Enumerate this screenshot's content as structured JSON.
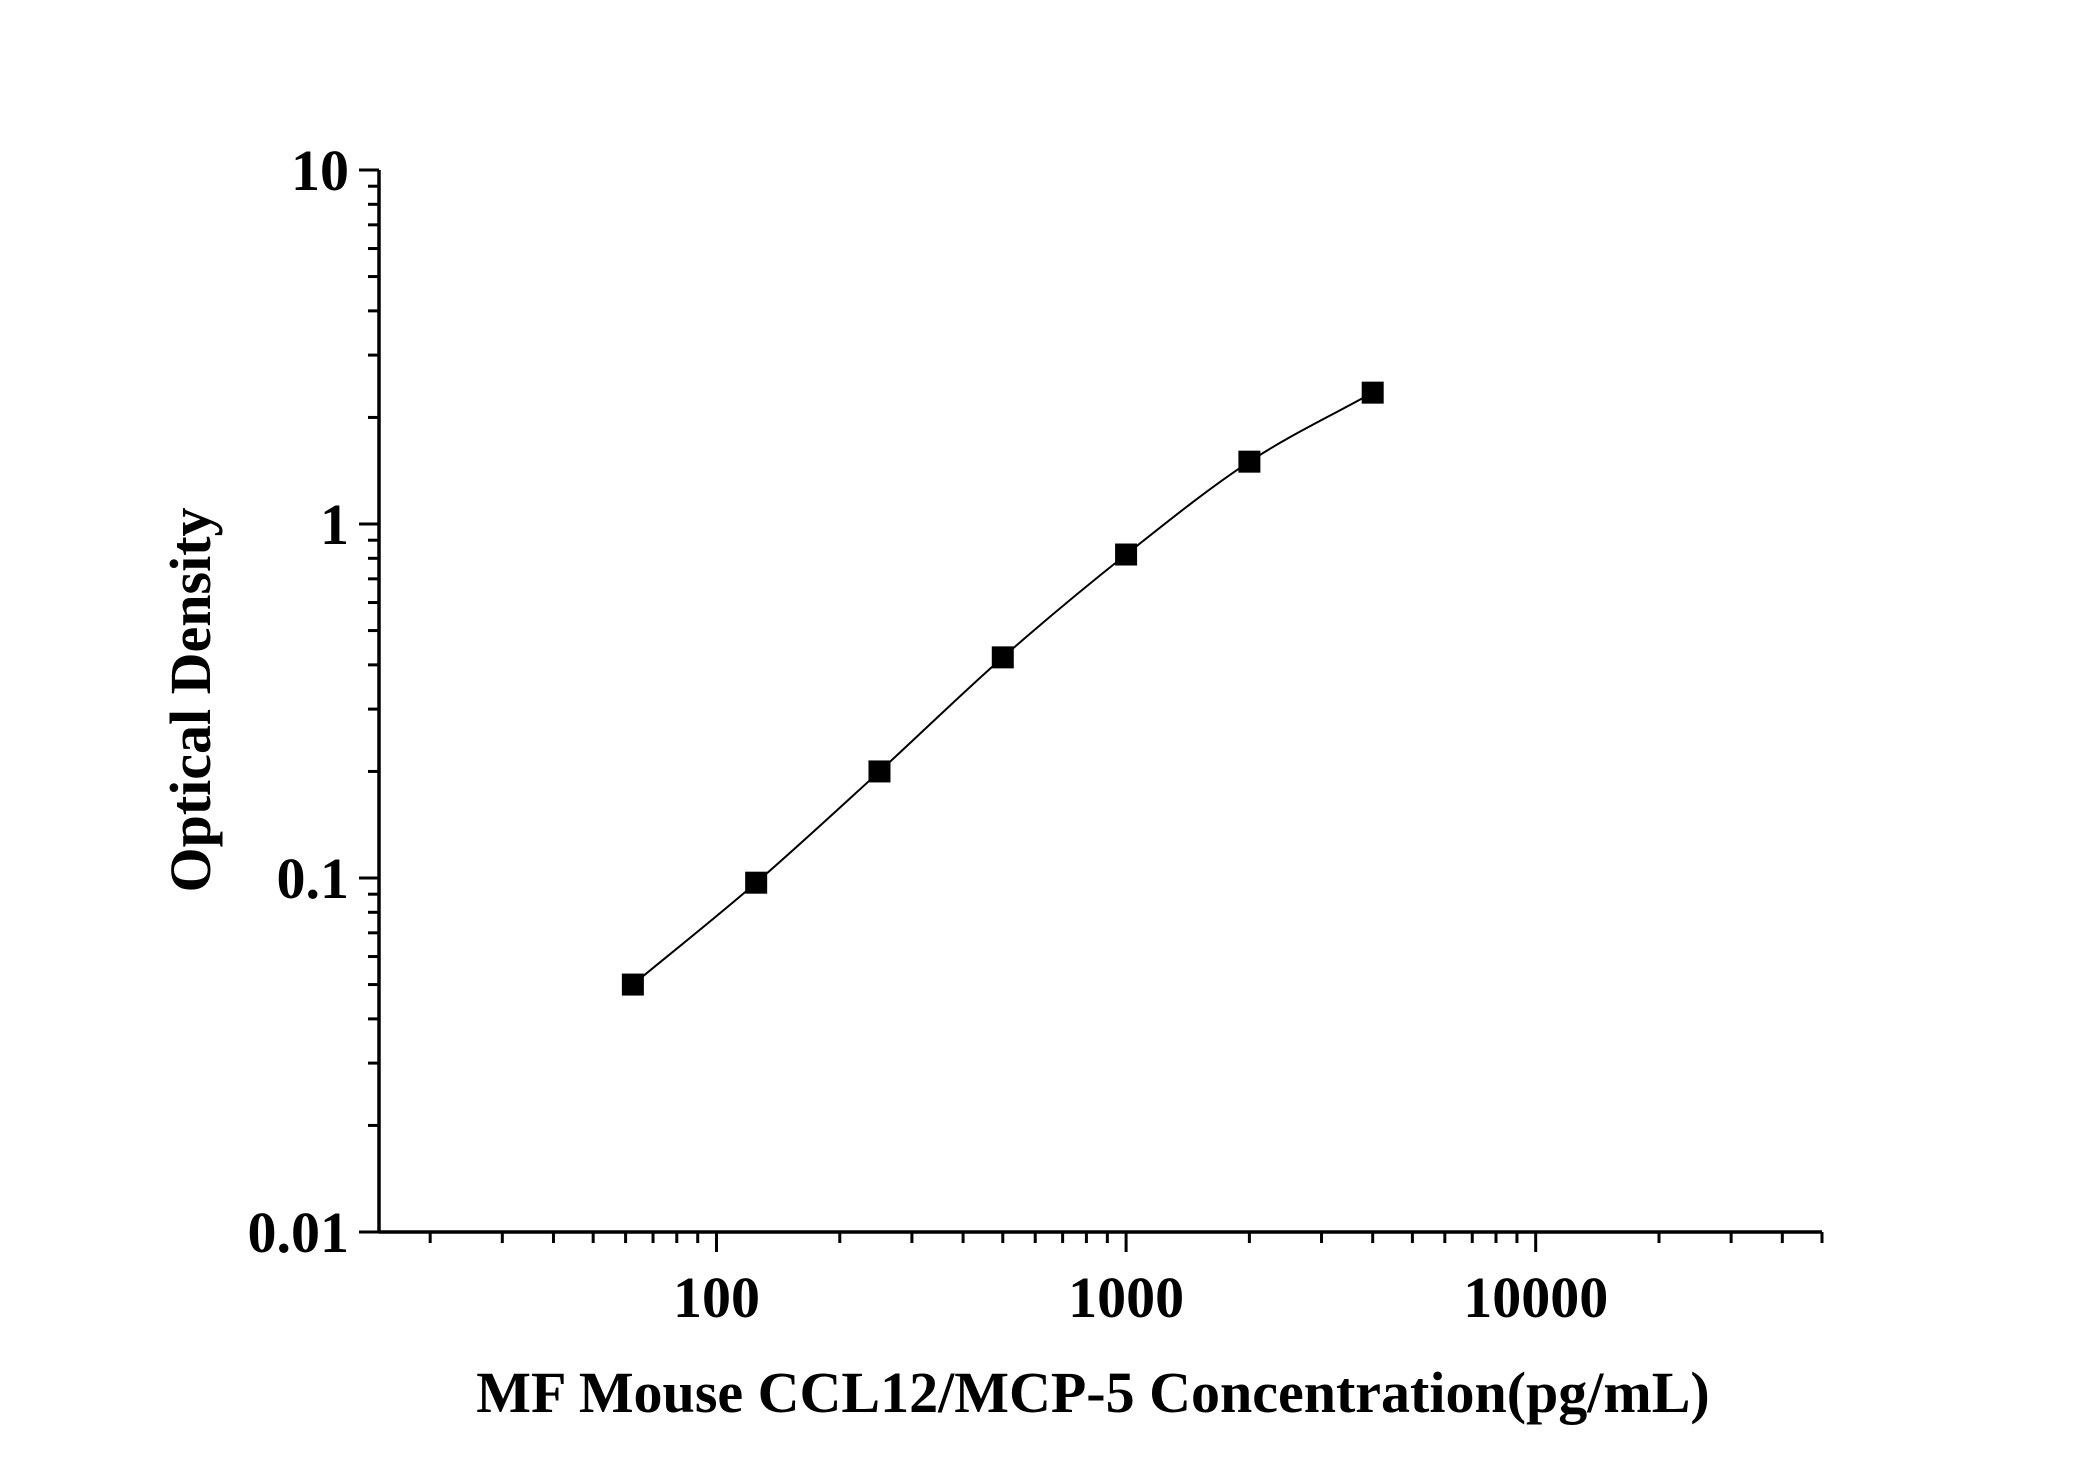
{
  "chart_data": {
    "type": "scatter",
    "title": "",
    "xlabel": "MF Mouse CCL12/MCP-5 Concentration(pg/mL)",
    "ylabel": "Optical Density",
    "xscale": "log",
    "yscale": "log",
    "xlim": [
      15,
      50000
    ],
    "ylim": [
      0.01,
      10
    ],
    "xticks": [
      {
        "value": 100,
        "label": "100"
      },
      {
        "value": 1000,
        "label": "1000"
      },
      {
        "value": 10000,
        "label": "10000"
      }
    ],
    "yticks": [
      {
        "value": 0.01,
        "label": "0.01"
      },
      {
        "value": 0.1,
        "label": "0.1"
      },
      {
        "value": 1,
        "label": "1"
      },
      {
        "value": 10,
        "label": "10"
      }
    ],
    "grid": false,
    "legend": "none",
    "series": [
      {
        "marker": "square",
        "color": "#000000",
        "fit_curve": true,
        "x": [
          62.5,
          125,
          250,
          500,
          1000,
          2000,
          4000
        ],
        "y": [
          0.05,
          0.097,
          0.2,
          0.42,
          0.82,
          1.5,
          2.35
        ]
      }
    ]
  }
}
